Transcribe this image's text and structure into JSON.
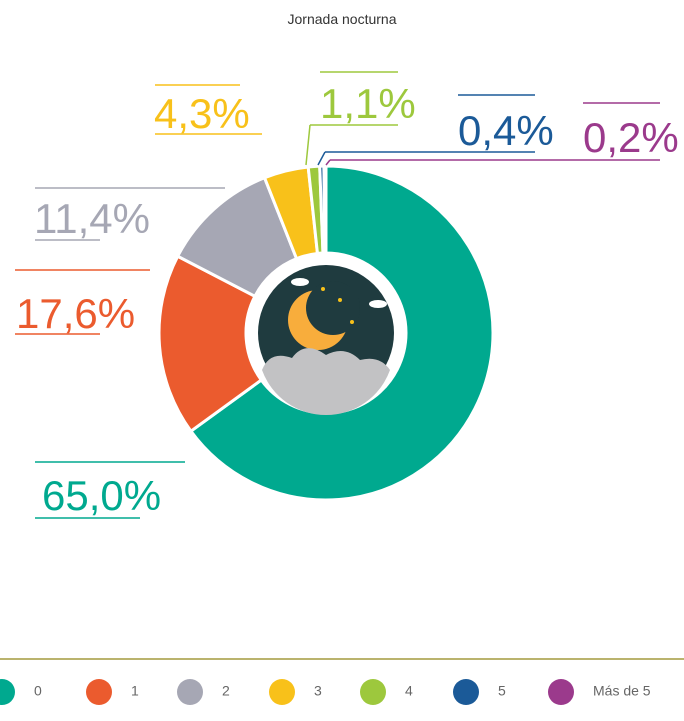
{
  "chart_data": {
    "type": "donut",
    "title": "Jornada nocturna",
    "categories": [
      "0",
      "1",
      "2",
      "3",
      "4",
      "5",
      "Más de 5"
    ],
    "values": [
      65.0,
      17.6,
      11.4,
      4.3,
      1.1,
      0.4,
      0.2
    ],
    "value_labels": [
      "65,0%",
      "17,6%",
      "11,4%",
      "4,3%",
      "1,1%",
      "0,4%",
      "0,2%"
    ],
    "colors": [
      "#00a98f",
      "#eb5b2e",
      "#a6a7b4",
      "#f8c11a",
      "#9dc83d",
      "#1b5a98",
      "#9b3a8c"
    ]
  }
}
